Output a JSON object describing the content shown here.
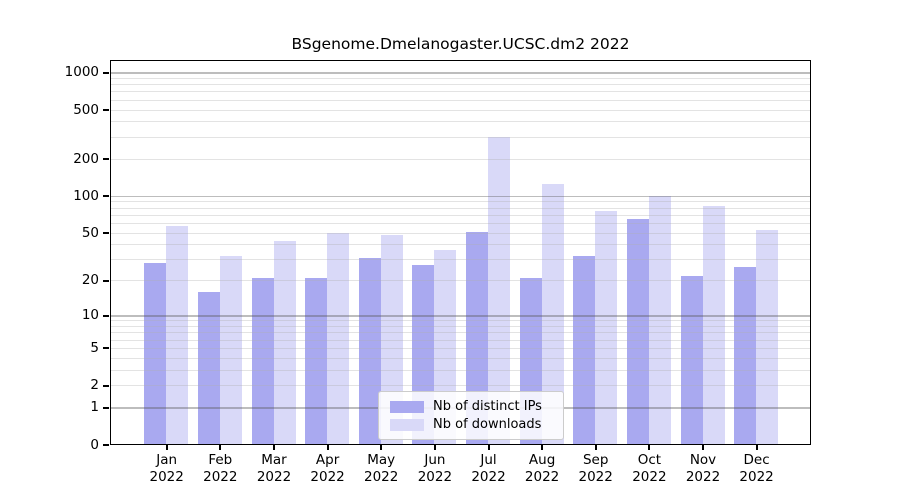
{
  "chart_data": {
    "type": "bar",
    "title": "BSgenome.Dmelanogaster.UCSC.dm2 2022",
    "categories": [
      "Jan",
      "Feb",
      "Mar",
      "Apr",
      "May",
      "Jun",
      "Jul",
      "Aug",
      "Sep",
      "Oct",
      "Nov",
      "Dec"
    ],
    "category_year": "2022",
    "series": [
      {
        "name": "Nb of distinct IPs",
        "color": "#a9a9f0",
        "values": [
          28,
          16,
          21,
          21,
          31,
          27,
          51,
          21,
          32,
          65,
          22,
          26
        ]
      },
      {
        "name": "Nb of downloads",
        "color": "#d9d9f8",
        "values": [
          57,
          32,
          43,
          50,
          48,
          36,
          300,
          125,
          75,
          100,
          82,
          53
        ]
      }
    ],
    "yscale": "log1p",
    "ytick_values": [
      0,
      1,
      2,
      5,
      10,
      20,
      50,
      100,
      200,
      500,
      1000
    ],
    "ytick_labels": [
      "0",
      "1",
      "2",
      "5",
      "10",
      "20",
      "50",
      "100",
      "200",
      "500",
      "1000"
    ],
    "major_grid_values": [
      1,
      10,
      100,
      1000
    ],
    "ylim": [
      0,
      1265
    ],
    "xlabel": "",
    "ylabel": "",
    "grid": true,
    "legend_position": "lower center"
  },
  "colors": {
    "axis": "#000000",
    "background": "#ffffff",
    "major_grid": "#c3c3c3",
    "minor_grid": "#e9e9e9"
  }
}
